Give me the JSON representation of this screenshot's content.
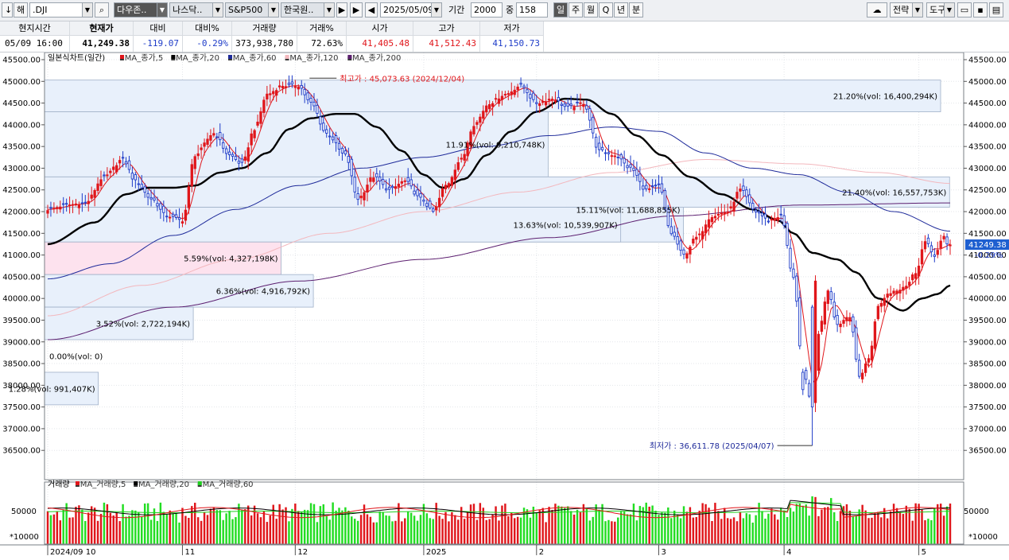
{
  "toolbar": {
    "items": [
      "↓",
      "해",
      ".DJI",
      "다우존..",
      "나스닥..",
      "S&P500",
      "한국원..",
      "2025/05/09",
      "기간",
      "2000",
      "중",
      "158"
    ],
    "periods": [
      "일",
      "주",
      "월",
      "Q",
      "년",
      "분"
    ],
    "right": [
      "전략",
      "도구"
    ]
  },
  "quote": {
    "headers": [
      "현지시간",
      "현재가",
      "대비",
      "대비%",
      "거래량",
      "거래%",
      "시가",
      "고가",
      "저가"
    ],
    "values": [
      "05/09   16:00",
      "41,249.38",
      "-119.07",
      "-0.29%",
      "373,938,780",
      "72.63%",
      "41,405.48",
      "41,512.43",
      "41,150.73"
    ],
    "colors": {
      "up": "#e0161b",
      "down": "#1e3cc8",
      "neutral": "#000000"
    }
  },
  "legend": {
    "title": "일본식차트(일간)",
    "items": [
      {
        "label": "MA_종가,5",
        "color": "#e0161b"
      },
      {
        "label": "MA_종가,20",
        "color": "#000000"
      },
      {
        "label": "MA_종가,60",
        "color": "#1e2a9a"
      },
      {
        "label": "MA_종가,120",
        "color": "#f3b7bd"
      },
      {
        "label": "MA_종가,200",
        "color": "#5c1f70"
      }
    ]
  },
  "volume_legend": {
    "title": "거래량",
    "items": [
      {
        "label": "MA_거래량,5",
        "color": "#e0161b"
      },
      {
        "label": "MA_거래량,20",
        "color": "#000000"
      },
      {
        "label": "MA_거래량,60",
        "color": "#20d020"
      }
    ],
    "tick": "50000",
    "unit": "*10000"
  },
  "price_tag": {
    "price": "41249.38",
    "change": "-0.29%"
  },
  "chart_data": {
    "type": "candlestick",
    "ylim": [
      36000,
      45600
    ],
    "y_ticks": [
      45500,
      45000,
      44500,
      44000,
      43500,
      43000,
      42500,
      42000,
      41500,
      41000,
      40500,
      40000,
      39500,
      39000,
      38500,
      38000,
      37500,
      37000,
      36500
    ],
    "y_tick_labels": [
      "45500.00",
      "45000.00",
      "44500.00",
      "44000.00",
      "43500.00",
      "43000.00",
      "42500.00",
      "42000.00",
      "41500.00",
      "41000.00",
      "40500.00",
      "40000.00",
      "39500.00",
      "39000.00",
      "38500.00",
      "38000.00",
      "37500.00",
      "37000.00",
      "36500.00"
    ],
    "y_tick_labels_right": [
      "45500.00",
      "45000.00",
      "44500.00",
      "44000.00",
      "43500.00",
      "43000.00",
      "42500.00",
      "42000.00",
      "41500.00",
      "41000.00",
      "40500.00",
      "40000.00",
      "39500.00",
      "39000.00",
      "38500.00",
      "38000.00",
      "37500.00",
      "37000.00",
      "36500.00"
    ],
    "x_labels": [
      {
        "day": 0,
        "label": "2024/09 10"
      },
      {
        "day": 43,
        "label": "11"
      },
      {
        "day": 79,
        "label": "12"
      },
      {
        "day": 120,
        "label": "2025"
      },
      {
        "day": 156,
        "label": "2"
      },
      {
        "day": 195,
        "label": "3"
      },
      {
        "day": 235,
        "label": "4"
      },
      {
        "day": 278,
        "label": "5"
      }
    ],
    "vol_ylim": [
      0,
      110000
    ],
    "grid": true,
    "closes_waypoints": [
      {
        "day": 0,
        "close": 42050
      },
      {
        "day": 6,
        "close": 42150
      },
      {
        "day": 12,
        "close": 42200
      },
      {
        "day": 18,
        "close": 42800
      },
      {
        "day": 24,
        "close": 43200
      },
      {
        "day": 28,
        "close": 42700
      },
      {
        "day": 33,
        "close": 42300
      },
      {
        "day": 38,
        "close": 41900
      },
      {
        "day": 43,
        "close": 41800
      },
      {
        "day": 47,
        "close": 43300
      },
      {
        "day": 53,
        "close": 43800
      },
      {
        "day": 58,
        "close": 43300
      },
      {
        "day": 62,
        "close": 43100
      },
      {
        "day": 66,
        "close": 43900
      },
      {
        "day": 70,
        "close": 44700
      },
      {
        "day": 75,
        "close": 44900
      },
      {
        "day": 80,
        "close": 44900
      },
      {
        "day": 84,
        "close": 44500
      },
      {
        "day": 89,
        "close": 43800
      },
      {
        "day": 95,
        "close": 43300
      },
      {
        "day": 99,
        "close": 42300
      },
      {
        "day": 104,
        "close": 42800
      },
      {
        "day": 109,
        "close": 42500
      },
      {
        "day": 114,
        "close": 42700
      },
      {
        "day": 119,
        "close": 42300
      },
      {
        "day": 123,
        "close": 42000
      },
      {
        "day": 127,
        "close": 42600
      },
      {
        "day": 132,
        "close": 43200
      },
      {
        "day": 136,
        "close": 44000
      },
      {
        "day": 141,
        "close": 44500
      },
      {
        "day": 146,
        "close": 44700
      },
      {
        "day": 151,
        "close": 44900
      },
      {
        "day": 156,
        "close": 44500
      },
      {
        "day": 161,
        "close": 44600
      },
      {
        "day": 166,
        "close": 44400
      },
      {
        "day": 171,
        "close": 44500
      },
      {
        "day": 176,
        "close": 43400
      },
      {
        "day": 181,
        "close": 43300
      },
      {
        "day": 186,
        "close": 43000
      },
      {
        "day": 191,
        "close": 42500
      },
      {
        "day": 195,
        "close": 42600
      },
      {
        "day": 199,
        "close": 41500
      },
      {
        "day": 203,
        "close": 41000
      },
      {
        "day": 207,
        "close": 41400
      },
      {
        "day": 212,
        "close": 41900
      },
      {
        "day": 217,
        "close": 42000
      },
      {
        "day": 221,
        "close": 42500
      },
      {
        "day": 226,
        "close": 42000
      },
      {
        "day": 230,
        "close": 41800
      },
      {
        "day": 234,
        "close": 41900
      },
      {
        "day": 238,
        "close": 40500
      },
      {
        "day": 241,
        "close": 38300
      },
      {
        "day": 244,
        "close": 37600
      },
      {
        "day": 246,
        "close": 39200
      },
      {
        "day": 249,
        "close": 40200
      },
      {
        "day": 252,
        "close": 39400
      },
      {
        "day": 256,
        "close": 39600
      },
      {
        "day": 259,
        "close": 38200
      },
      {
        "day": 262,
        "close": 38600
      },
      {
        "day": 265,
        "close": 39800
      },
      {
        "day": 268,
        "close": 40100
      },
      {
        "day": 271,
        "close": 40200
      },
      {
        "day": 274,
        "close": 40300
      },
      {
        "day": 277,
        "close": 40600
      },
      {
        "day": 280,
        "close": 41300
      },
      {
        "day": 283,
        "close": 41000
      },
      {
        "day": 286,
        "close": 41400
      },
      {
        "day": 287,
        "close": 41249
      }
    ],
    "ma20_waypoints": [
      {
        "day": 0,
        "v": 41250
      },
      {
        "day": 15,
        "v": 41750
      },
      {
        "day": 25,
        "v": 42400
      },
      {
        "day": 32,
        "v": 42550
      },
      {
        "day": 40,
        "v": 42550
      },
      {
        "day": 47,
        "v": 42600
      },
      {
        "day": 55,
        "v": 42900
      },
      {
        "day": 62,
        "v": 43000
      },
      {
        "day": 70,
        "v": 43350
      },
      {
        "day": 77,
        "v": 43900
      },
      {
        "day": 84,
        "v": 44150
      },
      {
        "day": 92,
        "v": 44250
      },
      {
        "day": 98,
        "v": 44250
      },
      {
        "day": 105,
        "v": 43950
      },
      {
        "day": 113,
        "v": 43400
      },
      {
        "day": 120,
        "v": 42850
      },
      {
        "day": 126,
        "v": 42550
      },
      {
        "day": 133,
        "v": 42750
      },
      {
        "day": 140,
        "v": 43300
      },
      {
        "day": 148,
        "v": 43850
      },
      {
        "day": 156,
        "v": 44300
      },
      {
        "day": 165,
        "v": 44600
      },
      {
        "day": 172,
        "v": 44580
      },
      {
        "day": 180,
        "v": 44250
      },
      {
        "day": 188,
        "v": 43750
      },
      {
        "day": 196,
        "v": 43300
      },
      {
        "day": 205,
        "v": 42800
      },
      {
        "day": 215,
        "v": 42400
      },
      {
        "day": 225,
        "v": 42050
      },
      {
        "day": 233,
        "v": 41800
      },
      {
        "day": 238,
        "v": 41500
      },
      {
        "day": 244,
        "v": 41050
      },
      {
        "day": 252,
        "v": 40900
      },
      {
        "day": 258,
        "v": 40600
      },
      {
        "day": 265,
        "v": 40000
      },
      {
        "day": 273,
        "v": 39720
      },
      {
        "day": 279,
        "v": 40000
      },
      {
        "day": 284,
        "v": 40100
      },
      {
        "day": 288,
        "v": 40300
      }
    ],
    "ma60_waypoints": [
      {
        "day": 0,
        "v": 40450
      },
      {
        "day": 20,
        "v": 40800
      },
      {
        "day": 40,
        "v": 41450
      },
      {
        "day": 60,
        "v": 42050
      },
      {
        "day": 80,
        "v": 42600
      },
      {
        "day": 100,
        "v": 43000
      },
      {
        "day": 120,
        "v": 43250
      },
      {
        "day": 140,
        "v": 43500
      },
      {
        "day": 160,
        "v": 43750
      },
      {
        "day": 180,
        "v": 43950
      },
      {
        "day": 195,
        "v": 43850
      },
      {
        "day": 210,
        "v": 43350
      },
      {
        "day": 225,
        "v": 43000
      },
      {
        "day": 240,
        "v": 42850
      },
      {
        "day": 255,
        "v": 42450
      },
      {
        "day": 270,
        "v": 42000
      },
      {
        "day": 288,
        "v": 41550
      }
    ],
    "ma120_waypoints": [
      {
        "day": 0,
        "v": 39600
      },
      {
        "day": 30,
        "v": 40300
      },
      {
        "day": 60,
        "v": 40900
      },
      {
        "day": 90,
        "v": 41500
      },
      {
        "day": 120,
        "v": 42000
      },
      {
        "day": 150,
        "v": 42450
      },
      {
        "day": 180,
        "v": 42900
      },
      {
        "day": 210,
        "v": 43200
      },
      {
        "day": 240,
        "v": 43100
      },
      {
        "day": 265,
        "v": 42900
      },
      {
        "day": 288,
        "v": 42650
      }
    ],
    "ma200_waypoints": [
      {
        "day": 0,
        "v": 39050
      },
      {
        "day": 40,
        "v": 39800
      },
      {
        "day": 80,
        "v": 40400
      },
      {
        "day": 120,
        "v": 40900
      },
      {
        "day": 160,
        "v": 41400
      },
      {
        "day": 200,
        "v": 41900
      },
      {
        "day": 240,
        "v": 42150
      },
      {
        "day": 288,
        "v": 42200
      }
    ],
    "volume_profile": [
      {
        "low": 44300,
        "high": 45030,
        "label": "21.20%(vol: 16,400,294K)",
        "frac": 1.0
      },
      {
        "low": 42800,
        "high": 44300,
        "label": "11.91%(vol: 9,210,748K)",
        "frac": 0.562
      },
      {
        "low": 41300,
        "high": 42800,
        "label": "15.11%(vol: 11,688,855K)",
        "frac": 0.713
      },
      {
        "low": 42100,
        "high": 42800,
        "label": "21.40%(vol: 16,557,753K)",
        "frac": 1.01
      },
      {
        "low": 41300,
        "high": 42100,
        "label": "13.63%(vol: 10,539,907K)",
        "frac": 0.643
      },
      {
        "low": 40550,
        "high": 41300,
        "label": "5.59%(vol: 4,327,198K)",
        "frac": 0.264
      },
      {
        "low": 39800,
        "high": 40550,
        "label": "6.36%(vol: 4,916,792K)",
        "frac": 0.3
      },
      {
        "low": 39050,
        "high": 39800,
        "label": "3.52%(vol: 2,722,194K)",
        "frac": 0.166
      },
      {
        "low": 38300,
        "high": 39050,
        "label": "0.00%(vol: 0)",
        "frac": 0.0
      },
      {
        "low": 37550,
        "high": 38300,
        "label": "1.28%(vol: 991,407K)",
        "frac": 0.06
      }
    ],
    "annotations": [
      {
        "text": "최고가 : 45,073.63 (2024/12/04)",
        "day": 80,
        "value": 45073.63,
        "color": "#e0161b"
      },
      {
        "text": "최저가 : 36,611.78 (2025/04/07)",
        "day": 244,
        "value": 36611.78,
        "color": "#1e2a9a"
      }
    ]
  }
}
